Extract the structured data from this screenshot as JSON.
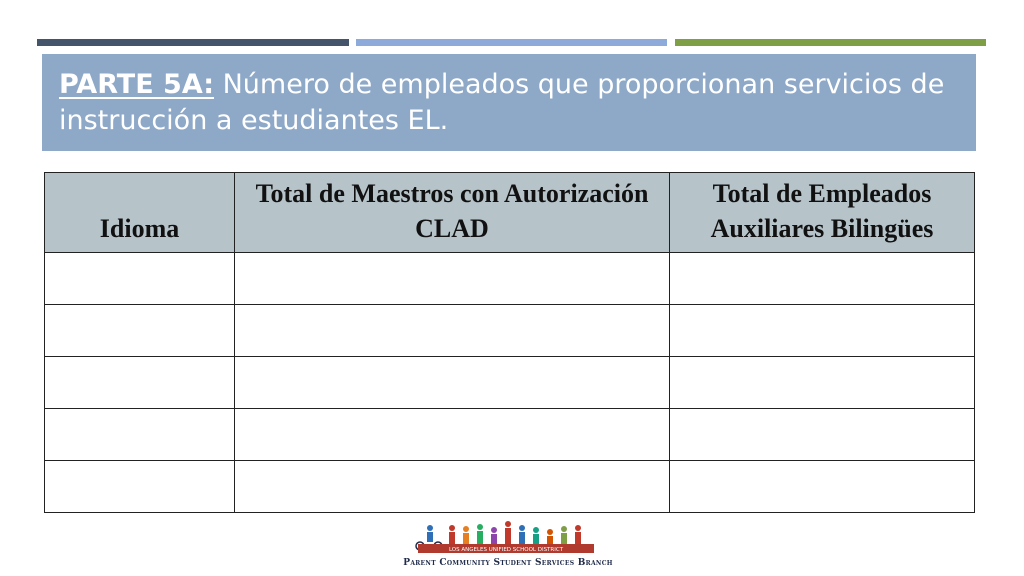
{
  "slide": {
    "title_lead": "PARTE 5A:",
    "title_rest": " Número de empleados que proporcionan servicios de instrucción a estudiantes EL."
  },
  "table": {
    "headers": [
      "Idioma",
      "Total de Maestros con Autorización CLAD",
      "Total de Empleados Auxiliares Bilingües"
    ],
    "rows": [
      [
        "",
        "",
        ""
      ],
      [
        "",
        "",
        ""
      ],
      [
        "",
        "",
        ""
      ],
      [
        "",
        "",
        ""
      ],
      [
        "",
        "",
        ""
      ]
    ]
  },
  "logo": {
    "banner_text": "LOS ANGELES UNIFIED SCHOOL DISTRICT",
    "footer_text": "Parent Community Student Services Branch"
  },
  "colors": {
    "bar_dark": "#44546a",
    "bar_light": "#8eaadb",
    "bar_green": "#7f9f47",
    "title_bg": "#8ea8c8",
    "header_bg": "#b6c3c9"
  }
}
